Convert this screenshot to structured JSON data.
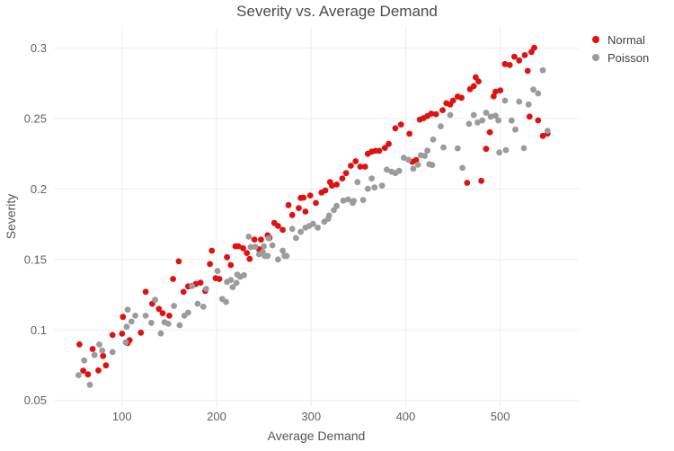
{
  "colors": {
    "grid": "#ededed",
    "tick_text": "#5f5f5f",
    "title_text": "#4a4a4a",
    "normal": "#e01111",
    "poisson": "#9b9b9b"
  },
  "chart_data": {
    "type": "scatter",
    "title": "Severity vs. Average Demand",
    "xlabel": "Average Demand",
    "ylabel": "Severity",
    "xlim": [
      28,
      583
    ],
    "ylim": [
      0.046,
      0.315
    ],
    "grid": true,
    "legend_position": "top-right",
    "x_ticks": {
      "values": [
        100,
        200,
        300,
        400,
        500
      ],
      "labels": [
        "100",
        "200",
        "300",
        "400",
        "500"
      ]
    },
    "y_ticks": {
      "values": [
        0.05,
        0.1,
        0.15,
        0.2,
        0.25,
        0.3
      ],
      "labels": [
        "0.05",
        "0.1",
        "0.15",
        "0.2",
        "0.25",
        "0.3"
      ]
    },
    "series": [
      {
        "name": "Normal",
        "color": "#e01111",
        "points": [
          [
            55,
            0.0897
          ],
          [
            59,
            0.0711
          ],
          [
            64,
            0.0685
          ],
          [
            69,
            0.0865
          ],
          [
            75,
            0.0713
          ],
          [
            80,
            0.0816
          ],
          [
            83,
            0.0749
          ],
          [
            90,
            0.0964
          ],
          [
            100,
            0.0974
          ],
          [
            101,
            0.1093
          ],
          [
            106,
            0.0907
          ],
          [
            108,
            0.0928
          ],
          [
            120,
            0.0981
          ],
          [
            125,
            0.1271
          ],
          [
            132,
            0.1186
          ],
          [
            139,
            0.115
          ],
          [
            143,
            0.1119
          ],
          [
            150,
            0.1101
          ],
          [
            154,
            0.1362
          ],
          [
            160,
            0.1487
          ],
          [
            165,
            0.127
          ],
          [
            170,
            0.1309
          ],
          [
            174,
            0.1313
          ],
          [
            178,
            0.1326
          ],
          [
            183,
            0.1336
          ],
          [
            188,
            0.1277
          ],
          [
            193,
            0.1468
          ],
          [
            195,
            0.1563
          ],
          [
            199,
            0.1368
          ],
          [
            203,
            0.1362
          ],
          [
            211,
            0.1516
          ],
          [
            215,
            0.1461
          ],
          [
            220,
            0.1594
          ],
          [
            223,
            0.1594
          ],
          [
            228,
            0.158
          ],
          [
            232,
            0.1546
          ],
          [
            235,
            0.1504
          ],
          [
            240,
            0.1642
          ],
          [
            245,
            0.1573
          ],
          [
            247,
            0.1641
          ],
          [
            254,
            0.1672
          ],
          [
            256,
            0.1653
          ],
          [
            261,
            0.1759
          ],
          [
            265,
            0.1738
          ],
          [
            270,
            0.171
          ],
          [
            276,
            0.1886
          ],
          [
            280,
            0.1816
          ],
          [
            287,
            0.1865
          ],
          [
            289,
            0.1937
          ],
          [
            292,
            0.1939
          ],
          [
            294,
            0.184
          ],
          [
            299,
            0.1954
          ],
          [
            305,
            0.1901
          ],
          [
            311,
            0.1975
          ],
          [
            315,
            0.199
          ],
          [
            320,
            0.2049
          ],
          [
            322,
            0.2024
          ],
          [
            327,
            0.2032
          ],
          [
            333,
            0.2075
          ],
          [
            337,
            0.2113
          ],
          [
            342,
            0.2165
          ],
          [
            347,
            0.2197
          ],
          [
            352,
            0.2159
          ],
          [
            357,
            0.2159
          ],
          [
            360,
            0.225
          ],
          [
            364,
            0.2265
          ],
          [
            368,
            0.2271
          ],
          [
            372,
            0.2271
          ],
          [
            378,
            0.2292
          ],
          [
            382,
            0.232
          ],
          [
            389,
            0.2431
          ],
          [
            395,
            0.2458
          ],
          [
            404,
            0.2392
          ],
          [
            407,
            0.2193
          ],
          [
            411,
            0.2205
          ],
          [
            415,
            0.2493
          ],
          [
            419,
            0.2503
          ],
          [
            423,
            0.2518
          ],
          [
            427,
            0.2535
          ],
          [
            432,
            0.2531
          ],
          [
            439,
            0.256
          ],
          [
            443,
            0.2609
          ],
          [
            447,
            0.2599
          ],
          [
            450,
            0.2627
          ],
          [
            455,
            0.2656
          ],
          [
            459,
            0.2648
          ],
          [
            465,
            0.2044
          ],
          [
            468,
            0.2709
          ],
          [
            472,
            0.273
          ],
          [
            474,
            0.2793
          ],
          [
            477,
            0.2764
          ],
          [
            480,
            0.2058
          ],
          [
            485,
            0.2285
          ],
          [
            489,
            0.2403
          ],
          [
            493,
            0.2658
          ],
          [
            495,
            0.2691
          ],
          [
            500,
            0.27
          ],
          [
            505,
            0.2887
          ],
          [
            510,
            0.288
          ],
          [
            515,
            0.2939
          ],
          [
            520,
            0.2912
          ],
          [
            526,
            0.295
          ],
          [
            529,
            0.2838
          ],
          [
            531,
            0.2514
          ],
          [
            533,
            0.2973
          ],
          [
            536,
            0.3003
          ],
          [
            540,
            0.2487
          ],
          [
            545,
            0.2377
          ],
          [
            550,
            0.2394
          ]
        ]
      },
      {
        "name": "Poisson",
        "color": "#9b9b9b",
        "points": [
          [
            54,
            0.0679
          ],
          [
            60,
            0.0784
          ],
          [
            66,
            0.0611
          ],
          [
            71,
            0.0822
          ],
          [
            76,
            0.0897
          ],
          [
            79,
            0.0854
          ],
          [
            90,
            0.0844
          ],
          [
            104,
            0.0911
          ],
          [
            105,
            0.1023
          ],
          [
            106,
            0.1144
          ],
          [
            110,
            0.106
          ],
          [
            114,
            0.1101
          ],
          [
            125,
            0.1101
          ],
          [
            131,
            0.1051
          ],
          [
            135,
            0.1214
          ],
          [
            141,
            0.0975
          ],
          [
            145,
            0.1055
          ],
          [
            149,
            0.1044
          ],
          [
            155,
            0.1171
          ],
          [
            161,
            0.1034
          ],
          [
            166,
            0.1101
          ],
          [
            170,
            0.1123
          ],
          [
            174,
            0.1313
          ],
          [
            180,
            0.1186
          ],
          [
            186,
            0.1165
          ],
          [
            189,
            0.1292
          ],
          [
            201,
            0.1419
          ],
          [
            206,
            0.122
          ],
          [
            210,
            0.1199
          ],
          [
            211,
            0.1341
          ],
          [
            215,
            0.1355
          ],
          [
            217,
            0.1304
          ],
          [
            221,
            0.1334
          ],
          [
            222,
            0.1393
          ],
          [
            225,
            0.1377
          ],
          [
            229,
            0.1389
          ],
          [
            234,
            0.1662
          ],
          [
            236,
            0.1588
          ],
          [
            241,
            0.159
          ],
          [
            245,
            0.1537
          ],
          [
            249,
            0.1552
          ],
          [
            250,
            0.1594
          ],
          [
            251,
            0.1525
          ],
          [
            254,
            0.1526
          ],
          [
            255,
            0.1651
          ],
          [
            259,
            0.1601
          ],
          [
            265,
            0.15
          ],
          [
            270,
            0.1563
          ],
          [
            272,
            0.1526
          ],
          [
            274,
            0.1525
          ],
          [
            280,
            0.1717
          ],
          [
            284,
            0.1652
          ],
          [
            289,
            0.1696
          ],
          [
            294,
            0.1726
          ],
          [
            298,
            0.1738
          ],
          [
            302,
            0.1753
          ],
          [
            307,
            0.1726
          ],
          [
            314,
            0.1768
          ],
          [
            318,
            0.1789
          ],
          [
            319,
            0.1812
          ],
          [
            324,
            0.185
          ],
          [
            327,
            0.188
          ],
          [
            334,
            0.1918
          ],
          [
            339,
            0.1926
          ],
          [
            344,
            0.1901
          ],
          [
            345,
            0.1916
          ],
          [
            349,
            0.2049
          ],
          [
            355,
            0.1922
          ],
          [
            360,
            0.2002
          ],
          [
            364,
            0.2075
          ],
          [
            367,
            0.2011
          ],
          [
            375,
            0.2024
          ],
          [
            380,
            0.2138
          ],
          [
            385,
            0.2123
          ],
          [
            389,
            0.2113
          ],
          [
            393,
            0.2129
          ],
          [
            398,
            0.2222
          ],
          [
            403,
            0.2208
          ],
          [
            408,
            0.2144
          ],
          [
            413,
            0.2172
          ],
          [
            416,
            0.224
          ],
          [
            420,
            0.2235
          ],
          [
            423,
            0.2272
          ],
          [
            425,
            0.2176
          ],
          [
            428,
            0.217
          ],
          [
            429,
            0.2351
          ],
          [
            437,
            0.2445
          ],
          [
            440,
            0.2295
          ],
          [
            447,
            0.2525
          ],
          [
            455,
            0.2289
          ],
          [
            460,
            0.215
          ],
          [
            467,
            0.2462
          ],
          [
            472,
            0.2525
          ],
          [
            476,
            0.2472
          ],
          [
            481,
            0.2487
          ],
          [
            485,
            0.2541
          ],
          [
            490,
            0.2514
          ],
          [
            495,
            0.252
          ],
          [
            498,
            0.2487
          ],
          [
            499,
            0.2259
          ],
          [
            505,
            0.2627
          ],
          [
            506,
            0.2276
          ],
          [
            512,
            0.2486
          ],
          [
            516,
            0.2422
          ],
          [
            520,
            0.262
          ],
          [
            525,
            0.229
          ],
          [
            530,
            0.26
          ],
          [
            535,
            0.2706
          ],
          [
            540,
            0.2678
          ],
          [
            545,
            0.2843
          ],
          [
            550,
            0.2413
          ]
        ]
      }
    ]
  }
}
